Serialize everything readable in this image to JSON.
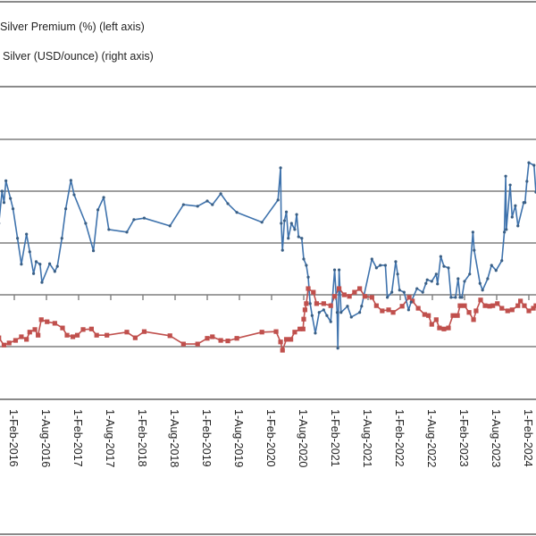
{
  "chart_data": {
    "type": "line",
    "title": "",
    "legend": [
      {
        "name": "Silver Premium (%) (left axis)",
        "color": "#4a7ebb"
      },
      {
        "name": "Silver (USD/ounce) (right axis)",
        "color": "#c0504d"
      }
    ],
    "legend_placement": "top-left",
    "x_tick_labels": [
      "1-Feb-2016",
      "1-Aug-2016",
      "1-Feb-2017",
      "1-Aug-2017",
      "1-Feb-2018",
      "1-Aug-2018",
      "1-Feb-2019",
      "1-Aug-2019",
      "1-Feb-2020",
      "1-Aug-2020",
      "1-Feb-2021",
      "1-Aug-2021",
      "1-Feb-2022",
      "1-Aug-2022",
      "1-Feb-2023",
      "1-Aug-2023",
      "1-Feb-2024"
    ],
    "x_tick_values": [
      2016.08,
      2016.58,
      2017.08,
      2017.58,
      2018.08,
      2018.58,
      2019.08,
      2019.58,
      2020.08,
      2020.58,
      2021.08,
      2021.58,
      2022.08,
      2022.58,
      2023.08,
      2023.58,
      2024.08
    ],
    "xlim": [
      2015.86,
      2024.19
    ],
    "y_units_note": "axis tick labels not visible; values in gridline steps relative to x-axis",
    "ylim": [
      -1.2,
      3.05
    ],
    "y_gridlines": [
      -1,
      0,
      1,
      2,
      3
    ],
    "grid": true,
    "series": [
      {
        "name": "Silver Premium (%) (left axis)",
        "color": "#4a7ebb",
        "x": [
          2015.84,
          2015.89,
          2015.92,
          2015.95,
          2016.02,
          2016.06,
          2016.13,
          2016.19,
          2016.27,
          2016.32,
          2016.38,
          2016.42,
          2016.48,
          2016.51,
          2016.63,
          2016.71,
          2016.75,
          2016.82,
          2016.88,
          2016.96,
          2017.01,
          2017.19,
          2017.31,
          2017.38,
          2017.47,
          2017.55,
          2017.83,
          2017.94,
          2018.1,
          2018.5,
          2018.71,
          2018.93,
          2019.08,
          2019.16,
          2019.29,
          2019.4,
          2019.54,
          2019.93,
          2020.18,
          2020.22,
          2020.23,
          2020.25,
          2020.28,
          2020.31,
          2020.34,
          2020.39,
          2020.44,
          2020.47,
          2020.5,
          2020.55,
          2020.58,
          2020.62,
          2020.65,
          2020.68,
          2020.71,
          2020.76,
          2020.82,
          2020.89,
          2020.94,
          2021.0,
          2021.06,
          2021.1,
          2021.11,
          2021.13,
          2021.16,
          2021.26,
          2021.32,
          2021.45,
          2021.48,
          2021.64,
          2021.71,
          2021.77,
          2021.85,
          2021.88,
          2021.95,
          2022.01,
          2022.04,
          2022.07,
          2022.14,
          2022.21,
          2022.25,
          2022.34,
          2022.43,
          2022.48,
          2022.5,
          2022.57,
          2022.64,
          2022.66,
          2022.71,
          2022.76,
          2022.83,
          2022.87,
          2022.94,
          2022.98,
          2023.01,
          2023.04,
          2023.08,
          2023.16,
          2023.21,
          2023.23,
          2023.32,
          2023.36,
          2023.44,
          2023.5,
          2023.57,
          2023.66,
          2023.7,
          2023.72,
          2023.73,
          2023.79,
          2023.82,
          2023.87,
          2023.91,
          2024.0,
          2024.02,
          2024.05,
          2024.08,
          2024.16,
          2024.19
        ],
        "y": [
          1.38,
          2.0,
          1.78,
          2.2,
          1.86,
          1.66,
          1.09,
          0.59,
          1.17,
          0.83,
          0.41,
          0.64,
          0.59,
          0.24,
          0.6,
          0.45,
          0.55,
          1.09,
          1.66,
          2.21,
          1.93,
          1.38,
          0.85,
          1.64,
          1.88,
          1.26,
          1.21,
          1.45,
          1.48,
          1.33,
          1.74,
          1.71,
          1.81,
          1.74,
          1.95,
          1.76,
          1.59,
          1.4,
          1.83,
          2.45,
          1.38,
          0.86,
          1.43,
          1.6,
          1.09,
          1.38,
          1.26,
          1.55,
          1.12,
          1.09,
          0.69,
          0.57,
          0.34,
          -0.17,
          -0.4,
          -0.74,
          -0.34,
          -0.29,
          -0.4,
          -0.52,
          0.48,
          -0.34,
          -1.03,
          0.48,
          -0.34,
          -0.22,
          -0.43,
          -0.34,
          -0.22,
          0.69,
          0.52,
          0.57,
          0.57,
          -0.05,
          0.05,
          0.64,
          0.4,
          0.09,
          0.05,
          -0.29,
          -0.14,
          0.12,
          0.05,
          0.22,
          0.29,
          0.26,
          0.4,
          0.21,
          0.74,
          0.55,
          0.52,
          -0.05,
          -0.05,
          0.31,
          -0.05,
          -0.05,
          0.26,
          0.4,
          1.21,
          0.86,
          0.22,
          0.09,
          0.31,
          0.57,
          0.47,
          0.66,
          1.21,
          2.29,
          1.26,
          2.12,
          1.5,
          1.72,
          1.33,
          1.78,
          1.78,
          2.19,
          2.55,
          2.5,
          1.98
        ]
      },
      {
        "name": "Silver (USD/ounce) (right axis)",
        "color": "#c0504d",
        "x": [
          2015.84,
          2015.92,
          2016.0,
          2016.1,
          2016.19,
          2016.27,
          2016.32,
          2016.4,
          2016.45,
          2016.5,
          2016.59,
          2016.71,
          2016.83,
          2016.9,
          2016.99,
          2017.06,
          2017.15,
          2017.28,
          2017.36,
          2017.52,
          2017.83,
          2017.96,
          2018.1,
          2018.5,
          2018.71,
          2018.93,
          2019.08,
          2019.16,
          2019.29,
          2019.4,
          2019.54,
          2019.93,
          2020.15,
          2020.22,
          2020.25,
          2020.31,
          2020.38,
          2020.44,
          2020.52,
          2020.57,
          2020.58,
          2020.6,
          2020.62,
          2020.65,
          2020.73,
          2020.78,
          2020.89,
          2021.0,
          2021.06,
          2021.13,
          2021.21,
          2021.29,
          2021.37,
          2021.45,
          2021.53,
          2021.64,
          2021.71,
          2021.8,
          2021.9,
          2021.97,
          2022.11,
          2022.22,
          2022.27,
          2022.36,
          2022.46,
          2022.52,
          2022.57,
          2022.64,
          2022.69,
          2022.76,
          2022.83,
          2022.9,
          2022.97,
          2023.01,
          2023.08,
          2023.15,
          2023.22,
          2023.26,
          2023.33,
          2023.4,
          2023.47,
          2023.52,
          2023.59,
          2023.66,
          2023.75,
          2023.82,
          2023.91,
          2023.95,
          2024.01,
          2024.08,
          2024.15,
          2024.19
        ],
        "y": [
          -0.83,
          -0.97,
          -0.93,
          -0.88,
          -0.81,
          -0.86,
          -0.72,
          -0.67,
          -0.78,
          -0.48,
          -0.52,
          -0.55,
          -0.64,
          -0.78,
          -0.81,
          -0.78,
          -0.67,
          -0.66,
          -0.78,
          -0.78,
          -0.72,
          -0.83,
          -0.71,
          -0.79,
          -0.95,
          -0.95,
          -0.84,
          -0.81,
          -0.88,
          -0.89,
          -0.84,
          -0.72,
          -0.71,
          -0.91,
          -1.07,
          -0.86,
          -0.86,
          -0.72,
          -0.66,
          -0.66,
          -0.47,
          -0.29,
          -0.17,
          0.12,
          0.05,
          -0.17,
          -0.17,
          -0.21,
          -0.03,
          0.12,
          0,
          -0.03,
          0.05,
          0.12,
          -0.03,
          -0.05,
          -0.21,
          -0.31,
          -0.29,
          -0.34,
          -0.22,
          -0.05,
          -0.12,
          -0.26,
          -0.38,
          -0.4,
          -0.57,
          -0.48,
          -0.64,
          -0.66,
          -0.64,
          -0.4,
          -0.4,
          -0.21,
          -0.21,
          -0.34,
          -0.48,
          -0.31,
          -0.1,
          -0.21,
          -0.22,
          -0.21,
          -0.17,
          -0.26,
          -0.31,
          -0.29,
          -0.21,
          -0.12,
          -0.21,
          -0.31,
          -0.26,
          -0.21
        ]
      }
    ]
  }
}
